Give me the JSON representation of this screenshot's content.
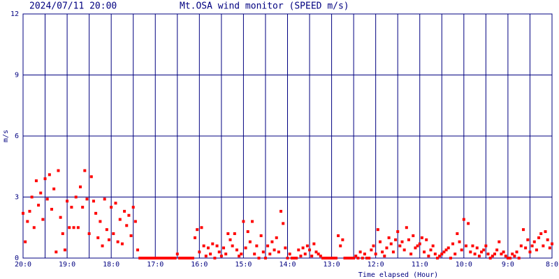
{
  "chart_data": {
    "type": "scatter",
    "subtitle": "2024/07/11 20:00",
    "title": "Mt.OSA wind monitor (SPEED m/s)",
    "x_label": "Time elapsed (Hour)",
    "y_label": "m/s",
    "color": "#ff0000",
    "grid_color": "#000080",
    "grid": true,
    "xlim": [
      0,
      12
    ],
    "ylim": [
      0,
      12
    ],
    "yticks": [
      0,
      3,
      6,
      9,
      12
    ],
    "xticks": [
      {
        "value": 0,
        "label": "20:0"
      },
      {
        "value": 0.5,
        "label": null
      },
      {
        "value": 1,
        "label": "19:0"
      },
      {
        "value": 1.5,
        "label": null
      },
      {
        "value": 2,
        "label": "18:0"
      },
      {
        "value": 2.5,
        "label": null
      },
      {
        "value": 3,
        "label": "17:0"
      },
      {
        "value": 3.5,
        "label": null
      },
      {
        "value": 4,
        "label": "16:0"
      },
      {
        "value": 4.5,
        "label": null
      },
      {
        "value": 5,
        "label": "15:0"
      },
      {
        "value": 5.5,
        "label": null
      },
      {
        "value": 6,
        "label": "14:0"
      },
      {
        "value": 6.5,
        "label": null
      },
      {
        "value": 7,
        "label": "13:0"
      },
      {
        "value": 7.5,
        "label": null
      },
      {
        "value": 8,
        "label": "12:0"
      },
      {
        "value": 8.5,
        "label": null
      },
      {
        "value": 9,
        "label": "11:0"
      },
      {
        "value": 9.5,
        "label": null
      },
      {
        "value": 10,
        "label": "10:0"
      },
      {
        "value": 10.5,
        "label": null
      },
      {
        "value": 11,
        "label": "9:0"
      },
      {
        "value": 11.5,
        "label": null
      },
      {
        "value": 12,
        "label": "8:0"
      }
    ],
    "x": [
      0,
      0.05,
      0.1,
      0.15,
      0.2,
      0.25,
      0.3,
      0.35,
      0.4,
      0.45,
      0.5,
      0.55,
      0.6,
      0.65,
      0.7,
      0.75,
      0.8,
      0.85,
      0.9,
      0.95,
      1,
      1.05,
      1.1,
      1.15,
      1.2,
      1.25,
      1.3,
      1.35,
      1.4,
      1.45,
      1.5,
      1.55,
      1.6,
      1.65,
      1.7,
      1.75,
      1.8,
      1.85,
      1.9,
      1.95,
      2,
      2.05,
      2.1,
      2.15,
      2.2,
      2.25,
      2.3,
      2.35,
      2.4,
      2.45,
      2.5,
      2.55,
      2.6,
      2.65,
      2.7,
      2.75,
      2.8,
      2.85,
      2.9,
      2.95,
      3,
      3.05,
      3.1,
      3.15,
      3.2,
      3.25,
      3.3,
      3.35,
      3.4,
      3.45,
      3.5,
      3.55,
      3.6,
      3.65,
      3.7,
      3.75,
      3.8,
      3.85,
      3.9,
      3.95,
      4,
      4.05,
      4.1,
      4.15,
      4.2,
      4.25,
      4.3,
      4.35,
      4.4,
      4.45,
      4.5,
      4.55,
      4.6,
      4.65,
      4.7,
      4.75,
      4.8,
      4.85,
      4.9,
      4.95,
      5,
      5.05,
      5.1,
      5.15,
      5.2,
      5.25,
      5.3,
      5.35,
      5.4,
      5.45,
      5.5,
      5.55,
      5.6,
      5.65,
      5.7,
      5.75,
      5.8,
      5.85,
      5.9,
      5.95,
      6,
      6.05,
      6.1,
      6.15,
      6.2,
      6.25,
      6.3,
      6.35,
      6.4,
      6.45,
      6.5,
      6.55,
      6.6,
      6.65,
      6.7,
      6.75,
      6.8,
      6.85,
      6.9,
      6.95,
      7,
      7.05,
      7.1,
      7.15,
      7.2,
      7.25,
      7.3,
      7.35,
      7.4,
      7.45,
      7.5,
      7.55,
      7.6,
      7.65,
      7.7,
      7.75,
      7.8,
      7.85,
      7.9,
      7.95,
      8,
      8.05,
      8.1,
      8.15,
      8.2,
      8.25,
      8.3,
      8.35,
      8.4,
      8.45,
      8.5,
      8.55,
      8.6,
      8.65,
      8.7,
      8.75,
      8.8,
      8.85,
      8.9,
      8.95,
      9,
      9.05,
      9.1,
      9.15,
      9.2,
      9.25,
      9.3,
      9.35,
      9.4,
      9.45,
      9.5,
      9.55,
      9.6,
      9.65,
      9.7,
      9.75,
      9.8,
      9.85,
      9.9,
      9.95,
      10,
      10.05,
      10.1,
      10.15,
      10.2,
      10.25,
      10.3,
      10.35,
      10.4,
      10.45,
      10.5,
      10.55,
      10.6,
      10.65,
      10.7,
      10.75,
      10.8,
      10.85,
      10.9,
      10.95,
      11,
      11.05,
      11.1,
      11.15,
      11.2,
      11.25,
      11.3,
      11.35,
      11.4,
      11.45,
      11.5,
      11.55,
      11.6,
      11.65,
      11.7,
      11.75,
      11.8,
      11.85,
      11.9,
      11.95,
      12
    ],
    "values": [
      2.2,
      0.8,
      1.8,
      2.3,
      3.0,
      1.5,
      3.8,
      2.6,
      3.2,
      1.9,
      3.9,
      2.9,
      4.1,
      2.4,
      3.4,
      0.3,
      4.3,
      2.0,
      1.2,
      0.4,
      2.8,
      1.5,
      2.5,
      1.5,
      3.0,
      1.5,
      3.5,
      2.5,
      4.3,
      2.9,
      1.2,
      4.0,
      2.8,
      2.2,
      1.0,
      1.8,
      0.6,
      2.9,
      1.4,
      0.9,
      2.5,
      1.2,
      2.7,
      0.8,
      1.9,
      0.7,
      2.3,
      1.6,
      2.1,
      1.1,
      2.5,
      1.8,
      0.4,
      0,
      0,
      0,
      0,
      0,
      0,
      0,
      0,
      0,
      0,
      0,
      0,
      0,
      0,
      0,
      0,
      0,
      0.2,
      0,
      0,
      0,
      0,
      0,
      0,
      0,
      1.0,
      1.4,
      0.3,
      1.5,
      0.6,
      0.1,
      0.5,
      0.2,
      0.7,
      0,
      0.6,
      0.3,
      0.1,
      0.5,
      0.2,
      1.2,
      0.9,
      0.6,
      1.2,
      0.4,
      0.1,
      0.2,
      1.8,
      0.5,
      1.3,
      0.8,
      1.8,
      0.2,
      0.6,
      0,
      1.1,
      0.3,
      0,
      0.6,
      0.2,
      0.8,
      0.4,
      1.0,
      0.3,
      2.3,
      1.7,
      0.5,
      0,
      0.2,
      0,
      0,
      0,
      0.4,
      0.1,
      0.5,
      0.2,
      0.6,
      0.4,
      0.1,
      0.7,
      0.3,
      0.2,
      0.1,
      0,
      0,
      0,
      0,
      0,
      0,
      0,
      1.1,
      0.6,
      0.9,
      0,
      0,
      0,
      0,
      0,
      0.1,
      0,
      0.3,
      0,
      0.2,
      0,
      0,
      0.4,
      0.6,
      0.2,
      1.4,
      0.8,
      0.3,
      0.1,
      0.5,
      1.0,
      0.7,
      0.3,
      0.9,
      1.3,
      0.6,
      0.8,
      0.4,
      1.5,
      0.9,
      0.2,
      1.1,
      0.5,
      0.6,
      0.7,
      1.0,
      0.3,
      0.9,
      0.1,
      0.4,
      0.6,
      0.2,
      0,
      0.1,
      0.2,
      0.3,
      0.4,
      0.5,
      0,
      0.7,
      0.2,
      1.2,
      0.8,
      0.4,
      1.9,
      0.6,
      1.7,
      0.3,
      0.6,
      0.2,
      0.5,
      0.1,
      0.3,
      0.4,
      0.6,
      0.2,
      0,
      0.1,
      0.2,
      0.4,
      0.8,
      0.2,
      0.3,
      0.1,
      0,
      0,
      0.2,
      0.1,
      0.3,
      0,
      0.6,
      1.4,
      0.5,
      0.9,
      0.3,
      0.6,
      0.8,
      0.4,
      1.0,
      1.2,
      0.6,
      1.3,
      0.9,
      0.5,
      0.7
    ]
  }
}
